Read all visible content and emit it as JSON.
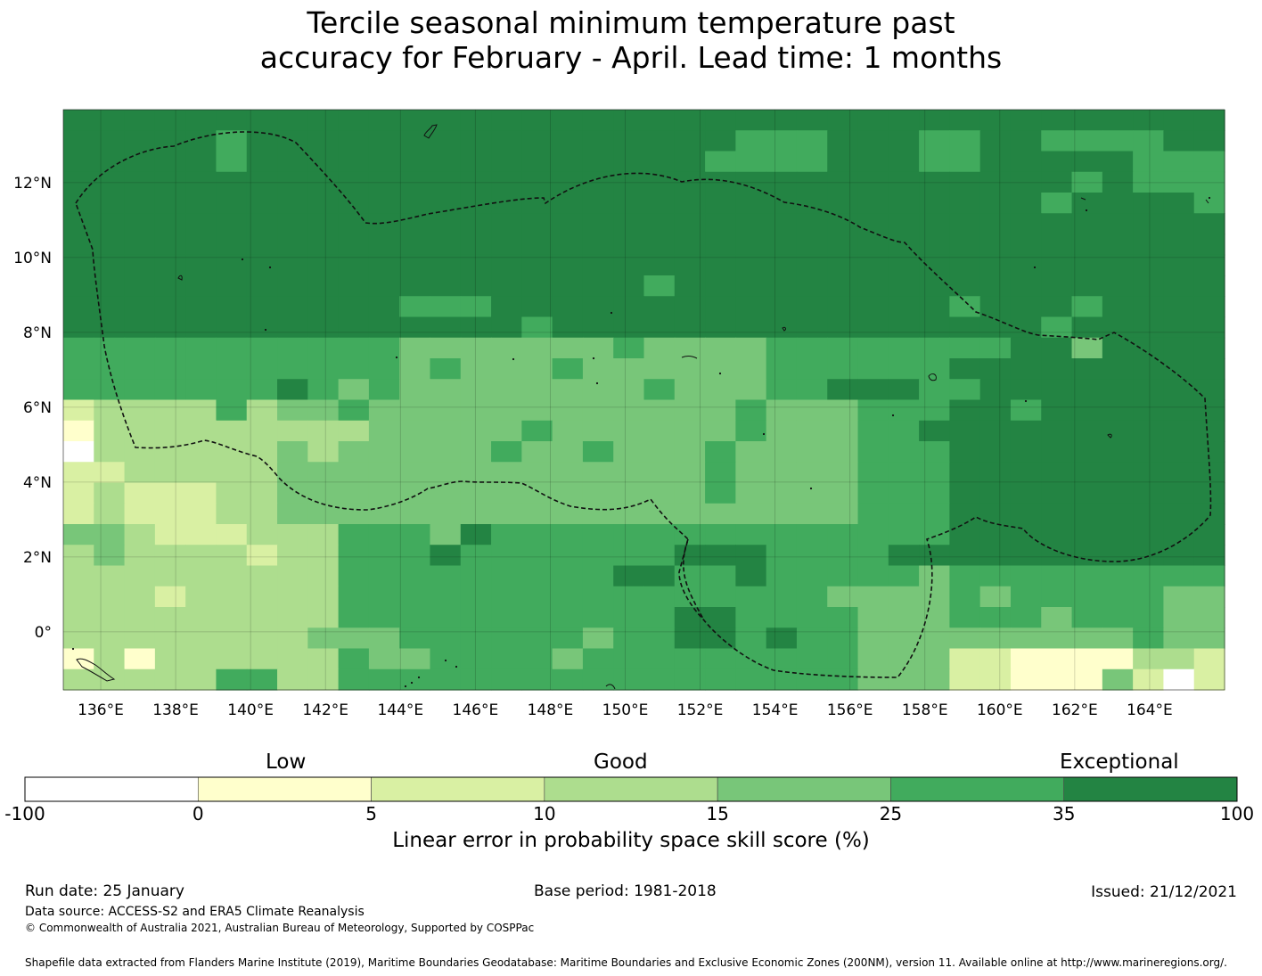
{
  "title": {
    "line1": "Tercile seasonal minimum temperature past",
    "line2": "accuracy for February - April. Lead time: 1 months"
  },
  "map": {
    "lon_labels": [
      "136°E",
      "138°E",
      "140°E",
      "142°E",
      "144°E",
      "146°E",
      "148°E",
      "150°E",
      "152°E",
      "154°E",
      "156°E",
      "158°E",
      "160°E",
      "162°E",
      "164°E"
    ],
    "lon_values": [
      136,
      138,
      140,
      142,
      144,
      146,
      148,
      150,
      152,
      154,
      156,
      158,
      160,
      162,
      164
    ],
    "lat_labels": [
      "12°N",
      "10°N",
      "8°N",
      "6°N",
      "4°N",
      "2°N",
      "0°"
    ],
    "lat_values": [
      12,
      10,
      8,
      6,
      4,
      2,
      0
    ],
    "lon_range": [
      135.0,
      166.0
    ],
    "lat_range": [
      -1.55,
      13.95
    ],
    "grid_resolution_deg": 0.83
  },
  "colorbar": {
    "category_labels": {
      "low": "Low",
      "good": "Good",
      "exceptional": "Exceptional"
    },
    "ticks": [
      "-100",
      "0",
      "5",
      "10",
      "15",
      "25",
      "35",
      "100"
    ],
    "colors": [
      "#ffffff",
      "#ffffcc",
      "#d9f0a3",
      "#addd8e",
      "#78c679",
      "#41ab5d",
      "#238443"
    ],
    "label": "Linear error in probability space skill score (%)"
  },
  "footer": {
    "run_date": "Run date: 25 January",
    "base_period": "Base period: 1981-2018",
    "issued": "Issued: 21/12/2021",
    "data_source": "Data source: ACCESS-S2 and ERA5 Climate Reanalysis",
    "copyright": "© Commonwealth of Australia 2021, Australian Bureau of Meteorology, Supported by COSPPac",
    "shapefile": "Shapefile data extracted from Flanders Marine Institute (2019), Maritime Boundaries Geodatabase: Maritime Boundaries and Exclusive Economic Zones (200NM), version 11. Available online at http://www.marineregions.org/."
  }
}
